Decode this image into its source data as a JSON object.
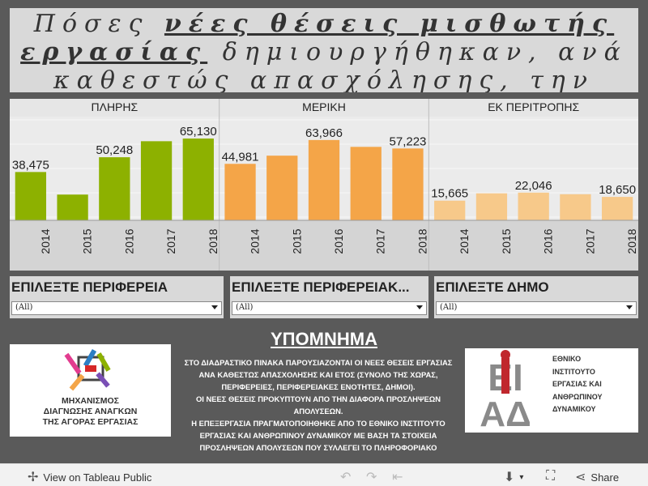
{
  "title": {
    "line1_plain": "Πόσες ",
    "line1_underlined": "νέες θέσεις μισθωτής",
    "line2_underlined": "εργασίας",
    "line2_plain": " δημιουργήθηκαν, ανά",
    "line3": "καθεστώς απασχόλησης, την"
  },
  "chart_data": {
    "type": "bar",
    "panels": [
      {
        "name": "ΠΛΗΡΗΣ",
        "color": "#8db100",
        "years": [
          "2014",
          "2015",
          "2016",
          "2017",
          "2018"
        ],
        "values": [
          38475,
          20500,
          50248,
          63000,
          65130
        ],
        "labels": [
          "38,475",
          "",
          "50,248",
          "",
          "65,130"
        ]
      },
      {
        "name": "ΜΕΡΙΚΗ",
        "color": "#f4a548",
        "years": [
          "2014",
          "2015",
          "2016",
          "2017",
          "2018"
        ],
        "values": [
          44981,
          51500,
          63966,
          58500,
          57223
        ],
        "labels": [
          "44,981",
          "",
          "63,966",
          "",
          "57,223"
        ]
      },
      {
        "name": "ΕΚ ΠΕΡΙΤΡΟΠΗΣ",
        "color": "#f7c98a",
        "years": [
          "2014",
          "2015",
          "2016",
          "2017",
          "2018"
        ],
        "values": [
          15665,
          21500,
          22046,
          20800,
          18650
        ],
        "labels": [
          "15,665",
          "",
          "22,046",
          "",
          "18,650"
        ]
      }
    ],
    "ylim": [
      0,
      80000
    ]
  },
  "filters": [
    {
      "label": "ΕΠΙΛΕΞΤΕ ΠΕΡΙΦΕΡΕΙΑ",
      "value": "(All)"
    },
    {
      "label": "ΕΠΙΛΕΞΤΕ ΠΕΡΙΦΕΡΕΙΑΚ...",
      "value": "(All)"
    },
    {
      "label": "ΕΠΙΛΕΞΤΕ ΔΗΜΟ",
      "value": "(All)"
    }
  ],
  "legend": {
    "title": "ΥΠΟΜΝΗΜΑ",
    "p1": "ΣΤΟ ΔΙΑΔΡΑΣΤΙΚΟ ΠΙΝΑΚΑ ΠΑΡΟΥΣΙΑΖΟΝΤΑΙ ΟΙ ΝΕΕΣ ΘΕΣΕΙΣ ΕΡΓΑΣΙΑΣ ΑΝΑ ΚΑΘΕΣΤΩΣ ΑΠΑΣΧΟΛΗΣΗΣ ΚΑΙ ΕΤΟΣ (ΣΥΝΟΛΟ ΤΗΣ ΧΩΡΑΣ, ΠΕΡΙΦΕΡΕΙΕΣ, ΠΕΡΙΦΕΡΕΙΑΚΕΣ ΕΝΟΤΗΤΕΣ, ΔΗΜΟΙ).",
    "p2": "ΟΙ ΝΕΕΣ ΘΕΣΕΙΣ ΠΡΟΚΥΠΤΟΥΝ ΑΠΟ ΤΗΝ ΔΙΑΦΟΡΑ ΠΡΟΣΛΗΨΕΩΝ ΑΠΟΛΥΣΕΩΝ.",
    "p3": "Η ΕΠΕΞΕΡΓΑΣΙΑ ΠΡΑΓΜΑΤΟΠΟΙΗΘΗΚΕ ΑΠΟ ΤΟ ΕΘΝΙΚΟ ΙΝΣΤΙΤΟΥΤΟ ΕΡΓΑΣΙΑΣ ΚΑΙ ΑΝΘΡΩΠΙΝΟΥ ΔΥΝΑΜΙΚΟΥ ΜΕ ΒΑΣΗ ΤΑ ΣΤΟΙΧΕΙΑ ΠΡΟΣΛΗΨΕΩΝ ΑΠΟΛΥΣΕΩΝ ΠΟΥ ΣΥΛΛΕΓΕΙ ΤΟ ΠΛΗΡΟΦΟΡΙΑΚΟ"
  },
  "logo_left": {
    "line1": "ΜΗΧΑΝΙΣΜΟΣ",
    "line2": "ΔΙΑΓΝΩΣΗΣ ΑΝΑΓΚΩΝ",
    "line3": "ΤΗΣ ΑΓΟΡΑΣ ΕΡΓΑΣΙΑΣ"
  },
  "logo_right": {
    "line1": "ΕΘΝΙΚΟ",
    "line2": "ΙΝΣΤΙΤΟΥΤΟ",
    "line3": "ΕΡΓΑΣΙΑΣ ΚΑΙ",
    "line4": "ΑΝΘΡΩΠΙΝΟΥ",
    "line5": "ΔΥΝΑΜΙΚΟΥ",
    "mark_top": "ΕΙ",
    "mark_bottom": "ΑΔ"
  },
  "footer": {
    "view_label": "View on Tableau Public",
    "share_label": "Share"
  }
}
